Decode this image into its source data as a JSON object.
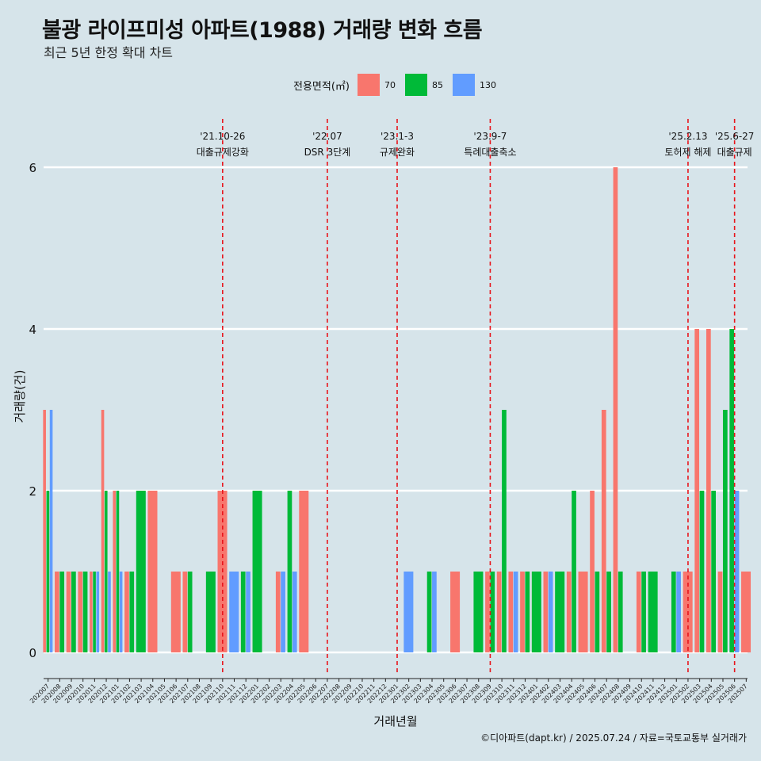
{
  "title": "불광 라이프미성 아파트(1988) 거래량 변화 흐름",
  "subtitle": "최근 5년 한정 확대 차트",
  "legend": {
    "title": "전용면적(㎡)",
    "items": [
      {
        "label": "70",
        "color": "#f8766d"
      },
      {
        "label": "85",
        "color": "#00ba38"
      },
      {
        "label": "130",
        "color": "#619cff"
      }
    ]
  },
  "caption": "©디아파트(dapt.kr) / 2025.07.24 / 자료=국토교통부 실거래가",
  "chart_data": {
    "type": "bar",
    "xlabel": "거래년월",
    "ylabel": "거래량(건)",
    "ylim": [
      0,
      6
    ],
    "yticks": [
      0,
      2,
      4,
      6
    ],
    "categories": [
      "202007",
      "202008",
      "202009",
      "202010",
      "202011",
      "202012",
      "202101",
      "202102",
      "202103",
      "202104",
      "202105",
      "202106",
      "202107",
      "202108",
      "202109",
      "202110",
      "202111",
      "202112",
      "202201",
      "202202",
      "202203",
      "202204",
      "202205",
      "202206",
      "202207",
      "202208",
      "202209",
      "202210",
      "202211",
      "202212",
      "202301",
      "202302",
      "202303",
      "202304",
      "202305",
      "202306",
      "202307",
      "202308",
      "202309",
      "202310",
      "202311",
      "202312",
      "202401",
      "202402",
      "202403",
      "202404",
      "202405",
      "202406",
      "202407",
      "202408",
      "202409",
      "202410",
      "202411",
      "202412",
      "202501",
      "202502",
      "202503",
      "202504",
      "202505",
      "202506",
      "202507"
    ],
    "series": [
      {
        "name": "70",
        "color": "#f8766d",
        "values": [
          3,
          1,
          1,
          1,
          1,
          3,
          2,
          1,
          0,
          2,
          0,
          1,
          1,
          0,
          0,
          2,
          0,
          0,
          0,
          0,
          1,
          0,
          2,
          0,
          0,
          0,
          0,
          0,
          0,
          0,
          0,
          0,
          0,
          0,
          0,
          1,
          0,
          0,
          1,
          1,
          1,
          1,
          0,
          1,
          0,
          1,
          1,
          2,
          3,
          6,
          0,
          1,
          0,
          0,
          0,
          1,
          4,
          4,
          1,
          0,
          1
        ]
      },
      {
        "name": "85",
        "color": "#00ba38",
        "values": [
          2,
          1,
          1,
          1,
          1,
          2,
          2,
          1,
          2,
          0,
          0,
          0,
          1,
          0,
          1,
          0,
          0,
          1,
          2,
          0,
          0,
          2,
          0,
          0,
          0,
          0,
          0,
          0,
          0,
          0,
          0,
          0,
          0,
          1,
          0,
          0,
          0,
          1,
          1,
          3,
          0,
          1,
          1,
          0,
          1,
          2,
          0,
          1,
          1,
          1,
          0,
          1,
          1,
          0,
          1,
          0,
          2,
          2,
          3,
          4,
          0
        ]
      },
      {
        "name": "130",
        "color": "#619cff",
        "values": [
          3,
          0,
          0,
          0,
          1,
          1,
          1,
          0,
          0,
          0,
          0,
          0,
          0,
          0,
          0,
          0,
          1,
          1,
          0,
          0,
          1,
          1,
          0,
          0,
          0,
          0,
          0,
          0,
          0,
          0,
          0,
          1,
          0,
          1,
          0,
          0,
          0,
          0,
          0,
          0,
          1,
          0,
          0,
          1,
          0,
          0,
          0,
          0,
          0,
          0,
          0,
          0,
          0,
          0,
          1,
          0,
          0,
          0,
          0,
          2,
          0
        ]
      }
    ],
    "events": [
      {
        "date": "'21.10-26",
        "label": "대출규제강화",
        "category": "202110"
      },
      {
        "date": "'22.07",
        "label": "DSR 3단계",
        "category": "202207"
      },
      {
        "date": "'23.1-3",
        "label": "규제완화",
        "category": "202301"
      },
      {
        "date": "'23.9-7",
        "label": "특례대출축소",
        "category": "202309"
      },
      {
        "date": "'25.2.13",
        "label": "토허제 해제",
        "category": "202502"
      },
      {
        "date": "'25.6-27",
        "label": "대출규제",
        "category": "202506"
      }
    ]
  }
}
